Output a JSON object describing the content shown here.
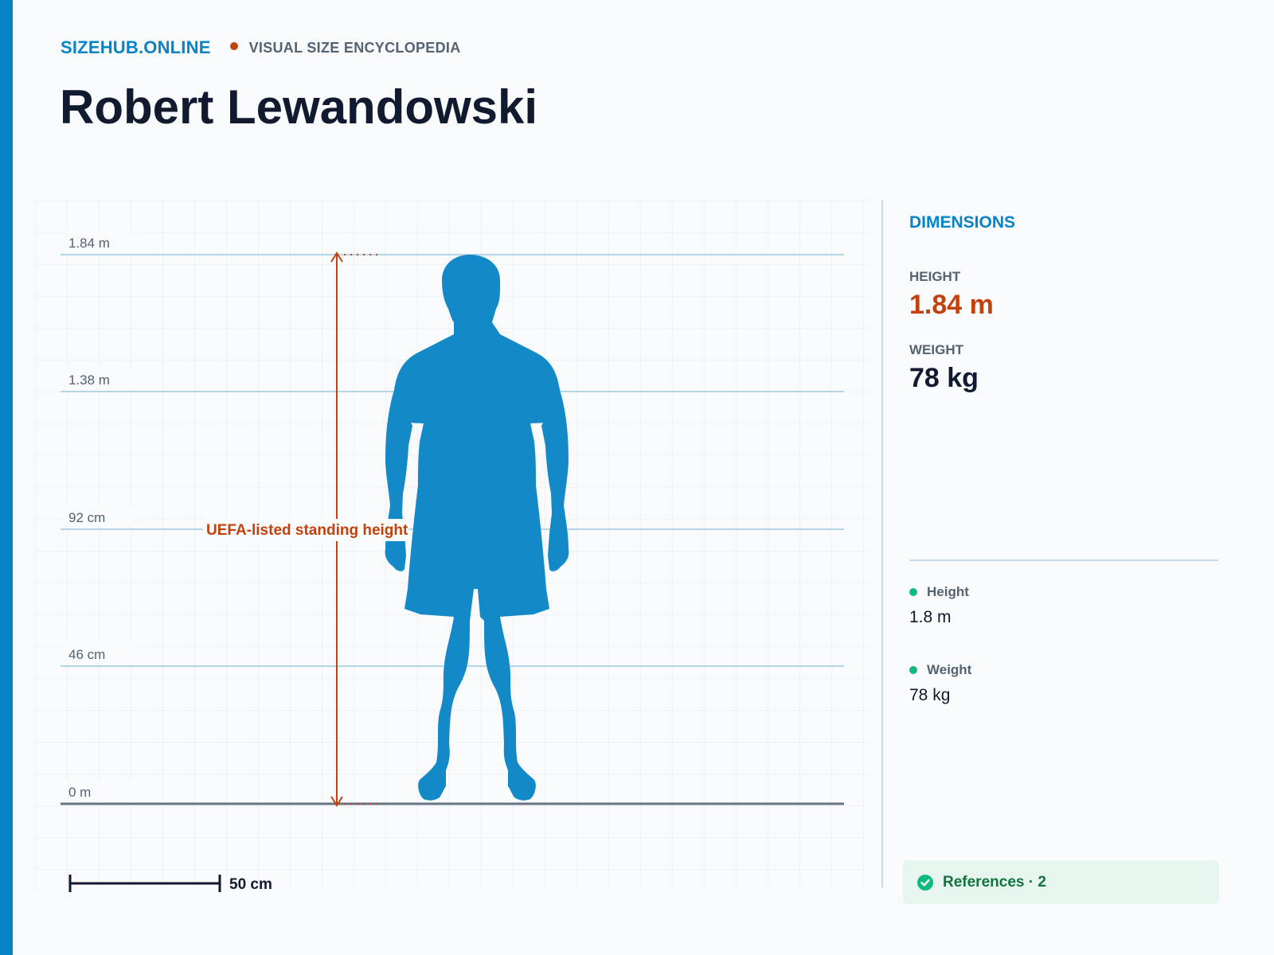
{
  "header": {
    "brand": "SIZEHUB.ONLINE",
    "tagline": "VISUAL SIZE ENCYCLOPEDIA",
    "title": "Robert Lewandowski"
  },
  "diagram": {
    "scale_ticks": [
      "1.84 m",
      "1.38 m",
      "92 cm",
      "46 cm",
      "0 m"
    ],
    "annotation": "UEFA-listed standing height",
    "scale_bar_label": "50 cm",
    "silhouette": "person-silhouette-icon"
  },
  "panel": {
    "heading": "DIMENSIONS",
    "height_label": "HEIGHT",
    "height_value": "1.84 m",
    "weight_label": "WEIGHT",
    "weight_value": "78 kg",
    "facts": [
      {
        "label": "Height",
        "value": "1.8 m"
      },
      {
        "label": "Weight",
        "value": "78 kg"
      }
    ],
    "references": "References · 2"
  },
  "colors": {
    "brand": "#0784c8",
    "accent": "#c2410c",
    "text": "#111a2e",
    "muted": "#556272",
    "positive": "#10b981"
  }
}
